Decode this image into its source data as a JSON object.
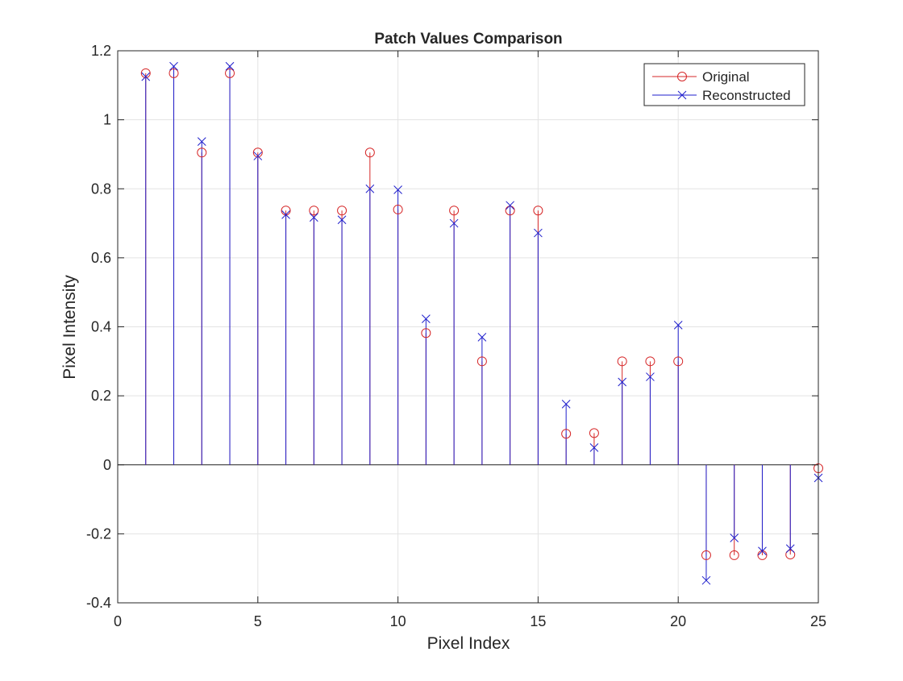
{
  "chart_data": {
    "type": "stem",
    "title": "Patch Values Comparison",
    "xlabel": "Pixel Index",
    "ylabel": "Pixel Intensity",
    "xlim": [
      0,
      25
    ],
    "ylim": [
      -0.4,
      1.2
    ],
    "xticks": [
      0,
      5,
      10,
      15,
      20,
      25
    ],
    "yticks": [
      -0.4,
      -0.2,
      0,
      0.2,
      0.4,
      0.6,
      0.8,
      1,
      1.2
    ],
    "ytick_labels": [
      "-0.4",
      "-0.2",
      "0",
      "0.2",
      "0.4",
      "0.6",
      "0.8",
      "1",
      "1.2"
    ],
    "grid": true,
    "legend_position": "top-right",
    "x": [
      1,
      2,
      3,
      4,
      5,
      6,
      7,
      8,
      9,
      10,
      11,
      12,
      13,
      14,
      15,
      16,
      17,
      18,
      19,
      20,
      21,
      22,
      23,
      24,
      25
    ],
    "series": [
      {
        "name": "Original",
        "marker": "circle",
        "color": "#d62728",
        "values": [
          1.135,
          1.135,
          0.905,
          1.135,
          0.905,
          0.737,
          0.737,
          0.737,
          0.905,
          0.74,
          0.382,
          0.737,
          0.3,
          0.737,
          0.737,
          0.09,
          0.092,
          0.3,
          0.3,
          0.3,
          -0.262,
          -0.262,
          -0.262,
          -0.26,
          -0.01
        ]
      },
      {
        "name": "Reconstructed",
        "marker": "x",
        "color": "#1f1fcc",
        "values": [
          1.125,
          1.155,
          0.937,
          1.155,
          0.895,
          0.725,
          0.717,
          0.71,
          0.8,
          0.797,
          0.423,
          0.7,
          0.37,
          0.752,
          0.672,
          0.176,
          0.05,
          0.24,
          0.255,
          0.405,
          -0.335,
          -0.212,
          -0.25,
          -0.243,
          -0.038
        ]
      }
    ]
  }
}
